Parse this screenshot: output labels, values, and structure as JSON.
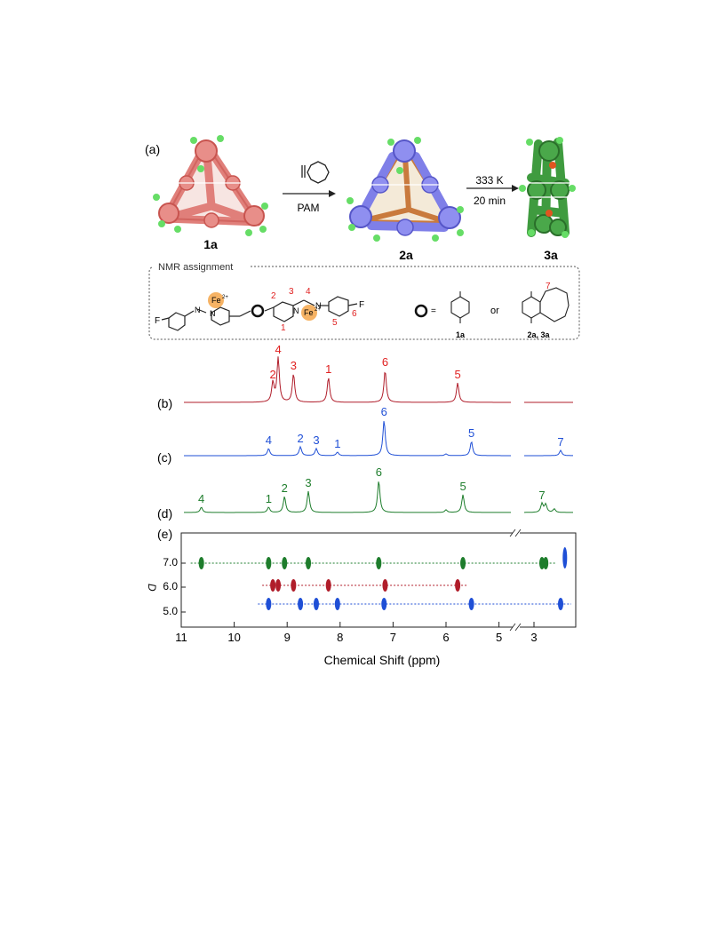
{
  "panel_labels": {
    "a": "(a)",
    "b": "(b)",
    "c": "(c)",
    "d": "(d)",
    "e": "(e)"
  },
  "reaction": {
    "compound_1": "1a",
    "compound_2": "2a",
    "compound_3": "3a",
    "reagent_label": "PAM",
    "condition_temp": "333 K",
    "condition_time": "20 min"
  },
  "nmr_box": {
    "title": "NMR assignment",
    "fe_label": "Fe",
    "fe_charge": "2+",
    "fluorine": "F",
    "nitrogen": "N",
    "position_labels": [
      "1",
      "2",
      "3",
      "4",
      "5",
      "6"
    ],
    "linker_equals": "=",
    "or_text": "or",
    "tetrazine_label": "1a",
    "pyridazine_label": "2a, 3a",
    "pyridazine_position": "7"
  },
  "colors": {
    "red": "#b01d2a",
    "red_label": "#e02020",
    "blue": "#1f4fd6",
    "green": "#1e7d2c",
    "cage_red": "#e07f7a",
    "cage_blue": "#7f7fe8",
    "cage_green": "#3f9b3f",
    "vertex_green": "#66dd66",
    "fe_orange": "#f5a64a"
  },
  "spectra": {
    "b": {
      "color": "red",
      "peaks": [
        {
          "label": "2",
          "ppm": 9.27
        },
        {
          "label": "4",
          "ppm": 9.17
        },
        {
          "label": "3",
          "ppm": 8.88
        },
        {
          "label": "1",
          "ppm": 8.22
        },
        {
          "label": "6",
          "ppm": 7.15
        },
        {
          "label": "5",
          "ppm": 5.78
        }
      ]
    },
    "c": {
      "color": "blue",
      "peaks": [
        {
          "label": "4",
          "ppm": 9.35
        },
        {
          "label": "2",
          "ppm": 8.75
        },
        {
          "label": "3",
          "ppm": 8.45
        },
        {
          "label": "1",
          "ppm": 8.05
        },
        {
          "label": "6",
          "ppm": 7.17
        },
        {
          "label": "5",
          "ppm": 5.52
        },
        {
          "label": "7",
          "ppm": 2.5
        }
      ]
    },
    "d": {
      "color": "green",
      "peaks": [
        {
          "label": "4",
          "ppm": 10.62
        },
        {
          "label": "1",
          "ppm": 9.35
        },
        {
          "label": "2",
          "ppm": 9.05
        },
        {
          "label": "3",
          "ppm": 8.6
        },
        {
          "label": "6",
          "ppm": 7.27
        },
        {
          "label": "5",
          "ppm": 5.68
        },
        {
          "label": "7",
          "ppm": 2.85
        }
      ]
    }
  },
  "dosy": {
    "ylabel": "D",
    "yticks": [
      "7.0",
      "6.0",
      "5.0"
    ],
    "rows": [
      {
        "color": "green",
        "D": 7.0,
        "ppm": [
          10.62,
          9.35,
          9.05,
          8.6,
          7.27,
          5.68,
          2.85,
          2.78
        ]
      },
      {
        "color": "red",
        "D": 6.0,
        "ppm": [
          9.27,
          9.17,
          8.88,
          8.22,
          7.15,
          5.78
        ]
      },
      {
        "color": "blue",
        "D": 5.0,
        "ppm": [
          9.35,
          8.75,
          8.45,
          8.05,
          7.17,
          5.52,
          2.5
        ]
      }
    ]
  },
  "chart_data": {
    "type": "line",
    "xlabel": "Chemical Shift (ppm)",
    "x_ticks": [
      "11",
      "10",
      "9",
      "8",
      "7",
      "6",
      "5",
      "3"
    ],
    "xlim": [
      11,
      2.1
    ],
    "axis_break": "4.5–3.5 ppm"
  }
}
